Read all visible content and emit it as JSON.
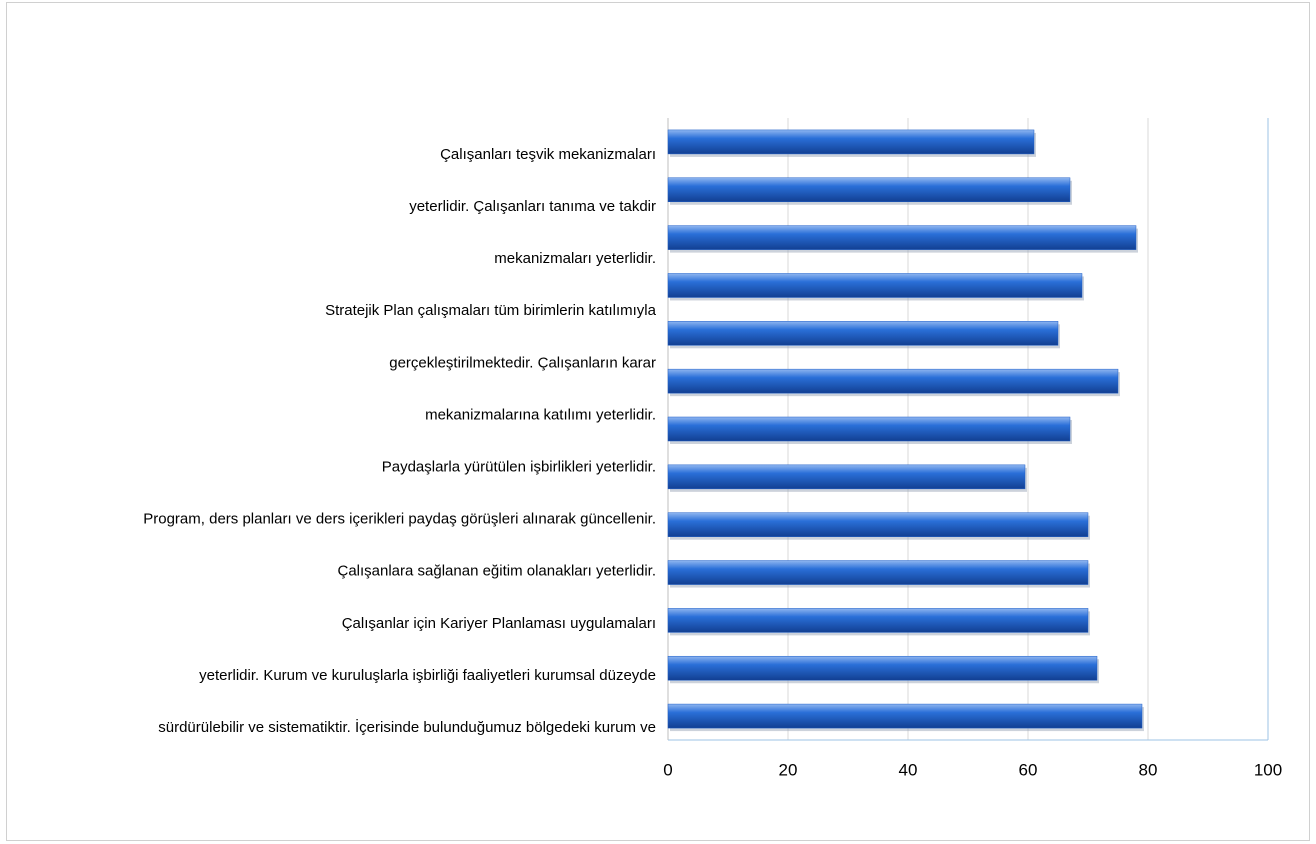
{
  "chart_data": {
    "type": "bar",
    "orientation": "horizontal",
    "categories": [
      "Çalışanları teşvik mekanizmaları",
      "yeterlidir.  Çalışanları tanıma ve takdir",
      "mekanizmaları yeterlidir.",
      "Stratejik Plan çalışmaları tüm birimlerin katılımıyla",
      "gerçekleştirilmektedir.  Çalışanların karar",
      "mekanizmalarına katılımı yeterlidir.",
      "Paydaşlarla yürütülen işbirlikleri yeterlidir.",
      "Program, ders planları ve ders içerikleri paydaş görüşleri alınarak güncellenir.",
      "Çalışanlara sağlanan eğitim olanakları yeterlidir.",
      "Çalışanlar için Kariyer Planlaması uygulamaları",
      "yeterlidir.  Kurum ve kuruluşlarla işbirliği faaliyetleri kurumsal düzeyde",
      "sürdürülebilir ve sistematiktir.  İçerisinde bulunduğumuz bölgedeki kurum ve",
      null
    ],
    "values": [
      61,
      67,
      78,
      69,
      65,
      75,
      67,
      59.5,
      70,
      70,
      70,
      71.5,
      79
    ],
    "color": "#1f5fc8",
    "xlim": [
      0,
      100
    ],
    "xticks": [
      0,
      20,
      40,
      60,
      80,
      100
    ],
    "grid": true
  }
}
